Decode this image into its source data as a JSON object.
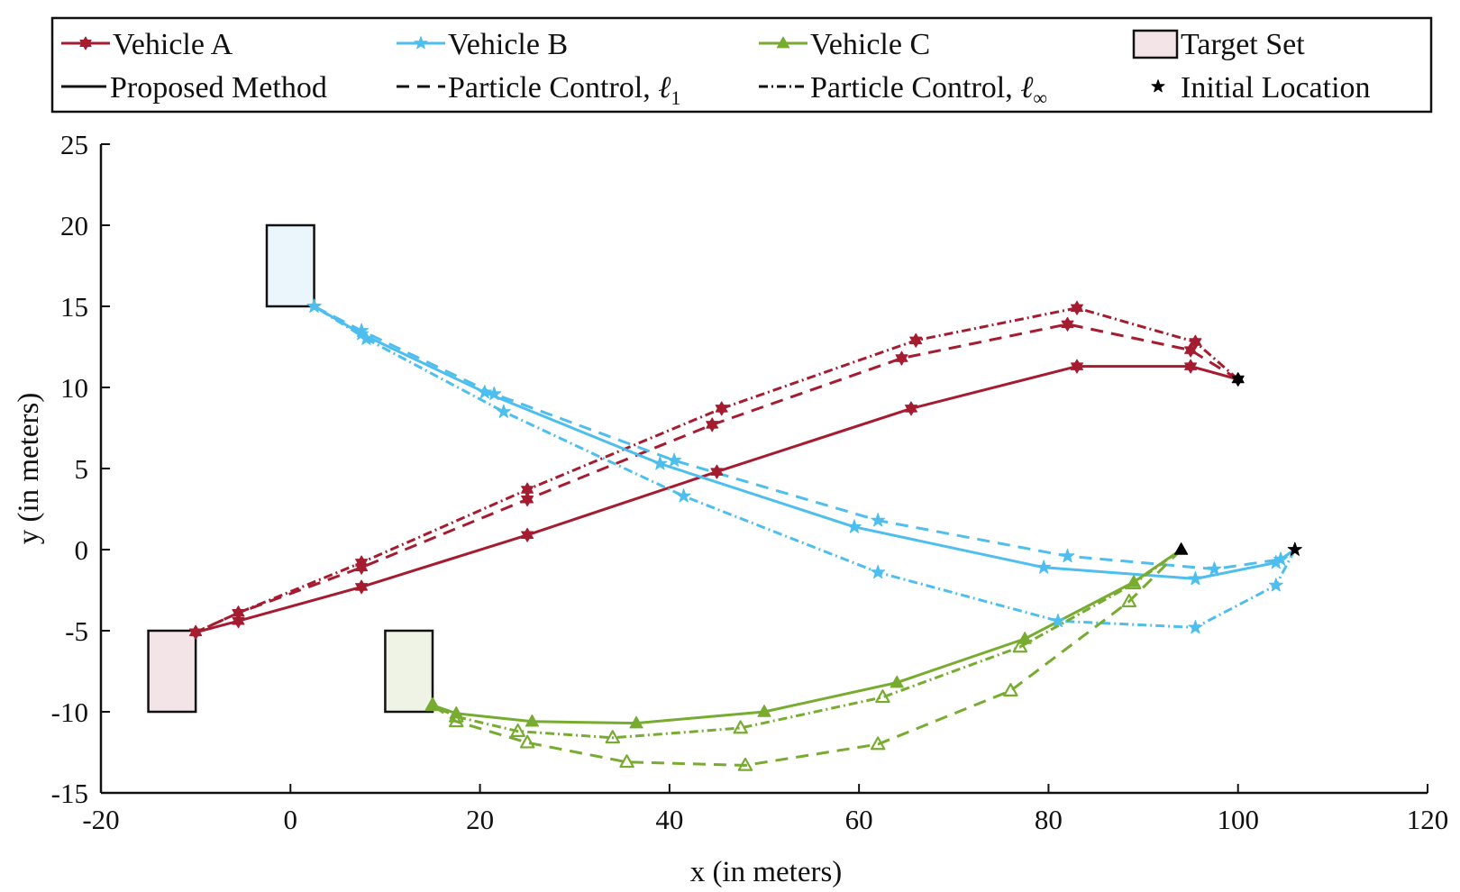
{
  "chart_data": {
    "type": "line",
    "title": "",
    "xlabel": "x (in meters)",
    "ylabel": "y (in meters)",
    "xlim": [
      -20,
      120
    ],
    "ylim": [
      -15,
      25
    ],
    "xticks": [
      "-20",
      "0",
      "20",
      "40",
      "60",
      "80",
      "100",
      "120"
    ],
    "yticks": [
      "-15",
      "-10",
      "-5",
      "0",
      "5",
      "10",
      "15",
      "20",
      "25"
    ],
    "colors": {
      "vehicle_a": "#A51C30",
      "vehicle_b": "#4DBEEE",
      "vehicle_c": "#77AC30",
      "axis": "#111111",
      "target_a_fill": "#F2E4E7",
      "target_b_fill": "#EAF6FC",
      "target_c_fill": "#EEF3E6"
    },
    "legend": {
      "vehicles": [
        {
          "label": "Vehicle A",
          "color_key": "vehicle_a",
          "marker": "hexagram"
        },
        {
          "label": "Vehicle B",
          "color_key": "vehicle_b",
          "marker": "pentagram"
        },
        {
          "label": "Vehicle C",
          "color_key": "vehicle_c",
          "marker": "triangle"
        },
        {
          "label": "Target Set",
          "marker": "rect"
        }
      ],
      "methods": [
        {
          "label": "Proposed Method",
          "dash": "solid"
        },
        {
          "label": "Particle Control, ",
          "math": "ℓ",
          "sub": "1",
          "dash": "dashed"
        },
        {
          "label": "Particle Control, ",
          "math": "ℓ",
          "sub": "∞",
          "dash": "dashdot"
        },
        {
          "label": "Initial Location",
          "marker": "star-black"
        }
      ]
    },
    "target_sets": [
      {
        "vehicle": "A",
        "x": [
          -15,
          -10
        ],
        "y": [
          -10,
          -5
        ]
      },
      {
        "vehicle": "B",
        "x": [
          -2.5,
          2.5
        ],
        "y": [
          15,
          20
        ]
      },
      {
        "vehicle": "C",
        "x": [
          10,
          15
        ],
        "y": [
          -10,
          -5
        ]
      }
    ],
    "initial_locations": [
      {
        "vehicle": "A",
        "x": 100,
        "y": 10.5,
        "marker": "hexagram"
      },
      {
        "vehicle": "B",
        "x": 106,
        "y": 0,
        "marker": "pentagram"
      },
      {
        "vehicle": "C",
        "x": 94,
        "y": 0,
        "marker": "triangle"
      }
    ],
    "series": [
      {
        "name": "Vehicle A - Proposed Method",
        "vehicle": "A",
        "dash": "solid",
        "x": [
          100,
          95,
          83,
          65.5,
          45,
          25,
          7.5,
          -5.5,
          -10
        ],
        "y": [
          10.5,
          11.3,
          11.3,
          8.7,
          4.8,
          0.9,
          -2.3,
          -4.4,
          -5.1
        ]
      },
      {
        "name": "Vehicle A - Particle Control l1",
        "vehicle": "A",
        "dash": "dashed",
        "x": [
          100,
          95,
          82,
          64.5,
          44.5,
          25,
          7.5,
          -5.5,
          -10
        ],
        "y": [
          10.5,
          12.3,
          13.9,
          11.8,
          7.7,
          3.1,
          -1.1,
          -3.9,
          -5.1
        ]
      },
      {
        "name": "Vehicle A - Particle Control linf",
        "vehicle": "A",
        "dash": "dashdot",
        "x": [
          100,
          95.5,
          83,
          66,
          45.5,
          25,
          7.5,
          -5.5,
          -10
        ],
        "y": [
          10.5,
          12.8,
          14.9,
          12.9,
          8.7,
          3.7,
          -0.8,
          -3.9,
          -5.1
        ]
      },
      {
        "name": "Vehicle B - Proposed Method",
        "vehicle": "B",
        "dash": "solid",
        "x": [
          106,
          104,
          95.5,
          79.5,
          59.5,
          39,
          20.5,
          7.5,
          2.5
        ],
        "y": [
          0,
          -0.8,
          -1.8,
          -1.1,
          1.4,
          5.3,
          9.7,
          13.3,
          15
        ]
      },
      {
        "name": "Vehicle B - Particle Control l1",
        "vehicle": "B",
        "dash": "dashed",
        "x": [
          106,
          104.5,
          97.5,
          82,
          62,
          40.5,
          21.5,
          7.5,
          2.5
        ],
        "y": [
          0,
          -0.6,
          -1.2,
          -0.4,
          1.8,
          5.5,
          9.6,
          13.5,
          15
        ]
      },
      {
        "name": "Vehicle B - Particle Control linf",
        "vehicle": "B",
        "dash": "dashdot",
        "x": [
          106,
          104,
          95.5,
          81,
          62,
          41.5,
          22.5,
          8,
          2.5
        ],
        "y": [
          0,
          -2.2,
          -4.8,
          -4.4,
          -1.4,
          3.3,
          8.5,
          13,
          15
        ]
      },
      {
        "name": "Vehicle C - Proposed Method",
        "vehicle": "C",
        "dash": "solid",
        "x": [
          94,
          89,
          77.5,
          64,
          50,
          36.5,
          25.5,
          17.5,
          15
        ],
        "y": [
          0,
          -2,
          -5.5,
          -8.2,
          -10,
          -10.7,
          -10.6,
          -10.1,
          -9.6
        ]
      },
      {
        "name": "Vehicle C - Particle Control l1",
        "vehicle": "C",
        "dash": "dashed",
        "x": [
          94,
          88.5,
          76,
          62,
          48,
          35.5,
          25,
          17.5,
          15
        ],
        "y": [
          0,
          -3.2,
          -8.7,
          -12,
          -13.3,
          -13.1,
          -11.9,
          -10.6,
          -9.6
        ]
      },
      {
        "name": "Vehicle C - Particle Control linf",
        "vehicle": "C",
        "dash": "dashdot",
        "x": [
          94,
          89,
          77,
          62.5,
          47.5,
          34,
          24,
          17.5,
          15
        ],
        "y": [
          0,
          -2.1,
          -6,
          -9.1,
          -11,
          -11.6,
          -11.2,
          -10.3,
          -9.6
        ]
      }
    ]
  }
}
